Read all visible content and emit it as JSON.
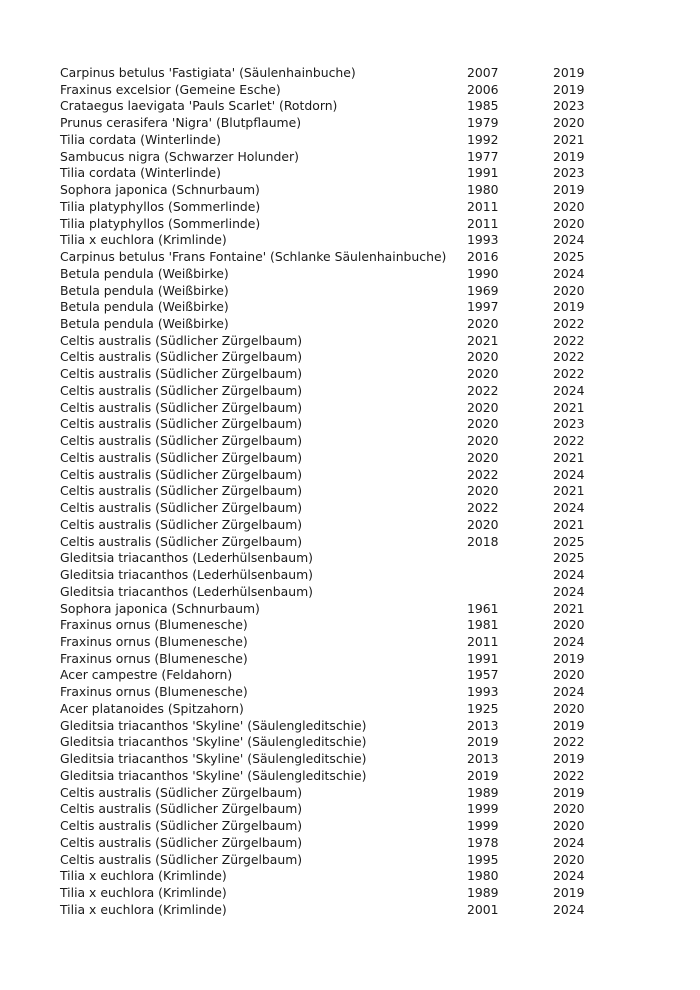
{
  "rows": [
    [
      "Carpinus betulus 'Fastigiata' (Säulenhainbuche)",
      "2007",
      "2019"
    ],
    [
      "Fraxinus excelsior (Gemeine Esche)",
      "2006",
      "2019"
    ],
    [
      "Crataegus laevigata 'Pauls Scarlet' (Rotdorn)",
      "1985",
      "2023"
    ],
    [
      "Prunus cerasifera 'Nigra' (Blutpflaume)",
      "1979",
      "2020"
    ],
    [
      "Tilia cordata (Winterlinde)",
      "1992",
      "2021"
    ],
    [
      "Sambucus nigra (Schwarzer Holunder)",
      "1977",
      "2019"
    ],
    [
      "Tilia cordata (Winterlinde)",
      "1991",
      "2023"
    ],
    [
      "Sophora japonica (Schnurbaum)",
      "1980",
      "2019"
    ],
    [
      "Tilia platyphyllos (Sommerlinde)",
      "2011",
      "2020"
    ],
    [
      "Tilia platyphyllos (Sommerlinde)",
      "2011",
      "2020"
    ],
    [
      "Tilia x euchlora (Krimlinde)",
      "1993",
      "2024"
    ],
    [
      "Carpinus betulus 'Frans Fontaine' (Schlanke Säulenhainbuche)",
      "2016",
      "2025"
    ],
    [
      "Betula pendula (Weißbirke)",
      "1990",
      "2024"
    ],
    [
      "Betula pendula (Weißbirke)",
      "1969",
      "2020"
    ],
    [
      "Betula pendula (Weißbirke)",
      "1997",
      "2019"
    ],
    [
      "Betula pendula (Weißbirke)",
      "2020",
      "2022"
    ],
    [
      "Celtis australis (Südlicher Zürgelbaum)",
      "2021",
      "2022"
    ],
    [
      "Celtis australis (Südlicher Zürgelbaum)",
      "2020",
      "2022"
    ],
    [
      "Celtis australis (Südlicher Zürgelbaum)",
      "2020",
      "2022"
    ],
    [
      "Celtis australis (Südlicher Zürgelbaum)",
      "2022",
      "2024"
    ],
    [
      "Celtis australis (Südlicher Zürgelbaum)",
      "2020",
      "2021"
    ],
    [
      "Celtis australis (Südlicher Zürgelbaum)",
      "2020",
      "2023"
    ],
    [
      "Celtis australis (Südlicher Zürgelbaum)",
      "2020",
      "2022"
    ],
    [
      "Celtis australis (Südlicher Zürgelbaum)",
      "2020",
      "2021"
    ],
    [
      "Celtis australis (Südlicher Zürgelbaum)",
      "2022",
      "2024"
    ],
    [
      "Celtis australis (Südlicher Zürgelbaum)",
      "2020",
      "2021"
    ],
    [
      "Celtis australis (Südlicher Zürgelbaum)",
      "2022",
      "2024"
    ],
    [
      "Celtis australis (Südlicher Zürgelbaum)",
      "2020",
      "2021"
    ],
    [
      "Celtis australis (Südlicher Zürgelbaum)",
      "2018",
      "2025"
    ],
    [
      "Gleditsia triacanthos (Lederhülsenbaum)",
      "",
      "2025"
    ],
    [
      "Gleditsia triacanthos (Lederhülsenbaum)",
      "",
      "2024"
    ],
    [
      "Gleditsia triacanthos (Lederhülsenbaum)",
      "",
      "2024"
    ],
    [
      "Sophora japonica (Schnurbaum)",
      "1961",
      "2021"
    ],
    [
      "Fraxinus ornus (Blumenesche)",
      "1981",
      "2020"
    ],
    [
      "Fraxinus ornus (Blumenesche)",
      "2011",
      "2024"
    ],
    [
      "Fraxinus ornus (Blumenesche)",
      "1991",
      "2019"
    ],
    [
      "Acer campestre (Feldahorn)",
      "1957",
      "2020"
    ],
    [
      "Fraxinus ornus (Blumenesche)",
      "1993",
      "2024"
    ],
    [
      "Acer platanoides (Spitzahorn)",
      "1925",
      "2020"
    ],
    [
      "Gleditsia triacanthos 'Skyline' (Säulengleditschie)",
      "2013",
      "2019"
    ],
    [
      "Gleditsia triacanthos 'Skyline' (Säulengleditschie)",
      "2019",
      "2022"
    ],
    [
      "Gleditsia triacanthos 'Skyline' (Säulengleditschie)",
      "2013",
      "2019"
    ],
    [
      "Gleditsia triacanthos 'Skyline' (Säulengleditschie)",
      "2019",
      "2022"
    ],
    [
      "Celtis australis (Südlicher Zürgelbaum)",
      "1989",
      "2019"
    ],
    [
      "Celtis australis (Südlicher Zürgelbaum)",
      "1999",
      "2020"
    ],
    [
      "Celtis australis (Südlicher Zürgelbaum)",
      "1999",
      "2020"
    ],
    [
      "Celtis australis (Südlicher Zürgelbaum)",
      "1978",
      "2024"
    ],
    [
      "Celtis australis (Südlicher Zürgelbaum)",
      "1995",
      "2020"
    ],
    [
      "Tilia x euchlora (Krimlinde)",
      "1980",
      "2024"
    ],
    [
      "Tilia x euchlora (Krimlinde)",
      "1989",
      "2019"
    ],
    [
      "Tilia x euchlora (Krimlinde)",
      "2001",
      "2024"
    ]
  ]
}
